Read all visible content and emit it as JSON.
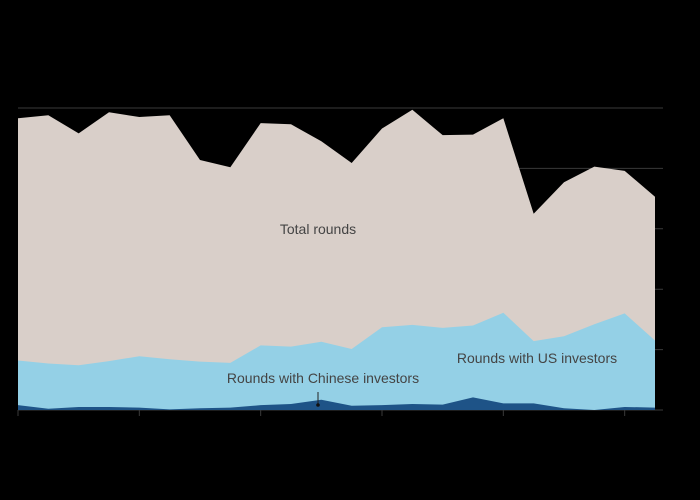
{
  "chart_data": {
    "type": "area",
    "title": "",
    "subtitle": "",
    "xlabel": "",
    "ylabel": "",
    "x_count": 22,
    "x_tick_labels": [],
    "y_tick_labels": [],
    "ylim": [
      0,
      5
    ],
    "grid": true,
    "series": [
      {
        "name": "Total rounds",
        "key": "total",
        "values": [
          4.83,
          4.88,
          4.58,
          4.93,
          4.85,
          4.88,
          4.14,
          4.02,
          4.75,
          4.73,
          4.45,
          4.09,
          4.66,
          4.97,
          4.55,
          4.56,
          4.83,
          3.25,
          3.77,
          4.03,
          3.96,
          3.53
        ]
      },
      {
        "name": "Rounds with US investors",
        "key": "us",
        "values": [
          0.82,
          0.77,
          0.74,
          0.81,
          0.89,
          0.84,
          0.8,
          0.78,
          1.07,
          1.05,
          1.13,
          1.01,
          1.37,
          1.41,
          1.36,
          1.4,
          1.61,
          1.14,
          1.22,
          1.42,
          1.6,
          1.15
        ]
      },
      {
        "name": "Rounds with Chinese investors",
        "key": "cn",
        "values": [
          0.08,
          0.02,
          0.05,
          0.05,
          0.04,
          0.01,
          0.03,
          0.04,
          0.08,
          0.1,
          0.17,
          0.07,
          0.08,
          0.1,
          0.09,
          0.21,
          0.11,
          0.11,
          0.03,
          0.0,
          0.05,
          0.04
        ]
      }
    ],
    "colors": {
      "total": "#d9cfc9",
      "us": "#94d0e6",
      "cn": "#1e5387",
      "grid": "#3a3a3a",
      "label": "#444444",
      "background": "#000000"
    }
  }
}
